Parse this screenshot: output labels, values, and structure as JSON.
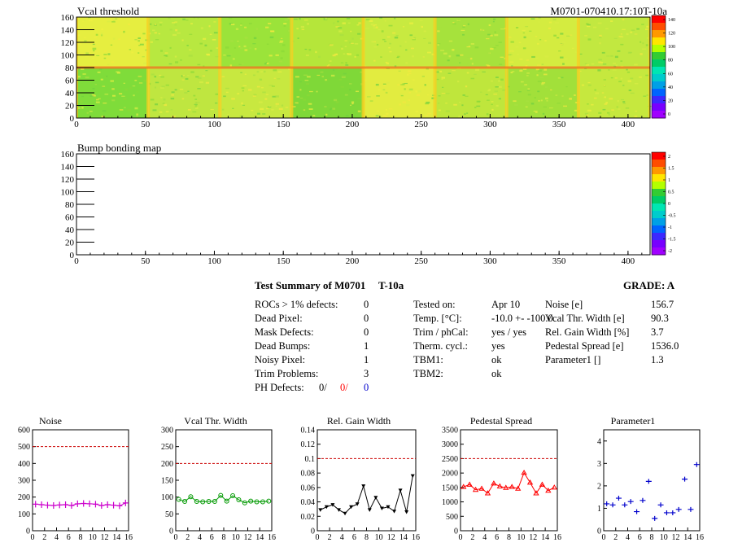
{
  "header": {
    "title_left": "Vcal threshold",
    "title_right": "M0701-070410.17:10T-10a"
  },
  "maps": [
    {
      "title": "Vcal threshold",
      "x_ticks": [
        "0",
        "50",
        "100",
        "150",
        "200",
        "250",
        "300",
        "350",
        "400"
      ],
      "y_ticks": [
        "0",
        "20",
        "40",
        "60",
        "80",
        "100",
        "120",
        "140",
        "160"
      ],
      "palette_labels": [
        "140",
        "120",
        "100",
        "80",
        "60",
        "40",
        "20",
        "0"
      ]
    },
    {
      "title": "Bump bonding map",
      "x_ticks": [
        "0",
        "50",
        "100",
        "150",
        "200",
        "250",
        "300",
        "350",
        "400"
      ],
      "y_ticks": [
        "0",
        "20",
        "40",
        "60",
        "80",
        "100",
        "120",
        "140",
        "160"
      ],
      "palette_labels": [
        "2",
        "1.5",
        "1",
        "0.5",
        "0",
        "-0.5",
        "-1",
        "-1.5",
        "-2"
      ]
    }
  ],
  "summary": {
    "title": "Test Summary of M0701",
    "test_id": "T-10a",
    "grade": "GRADE:  A",
    "defects": [
      {
        "label": "ROCs > 1% defects:",
        "value": "0"
      },
      {
        "label": "Dead Pixel:",
        "value": "0"
      },
      {
        "label": "Mask Defects:",
        "value": "0"
      },
      {
        "label": "Dead Bumps:",
        "value": "1"
      },
      {
        "label": "Noisy Pixel:",
        "value": "1"
      },
      {
        "label": "Trim Problems:",
        "value": "3"
      }
    ],
    "ph_defects": {
      "label": "PH Defects:",
      "v1": "0/",
      "v2": "0/",
      "v3": "0"
    },
    "conditions": [
      {
        "label": "Tested on:",
        "value": "Apr 10"
      },
      {
        "label": "Temp. [°C]:",
        "value": "-10.0 +- -100.0"
      },
      {
        "label": "Trim / phCal:",
        "value": "yes / yes"
      },
      {
        "label": "Therm. cycl.:",
        "value": "yes"
      },
      {
        "label": "TBM1:",
        "value": "ok"
      },
      {
        "label": "TBM2:",
        "value": "ok"
      }
    ],
    "results": [
      {
        "label": "Noise [e]",
        "value": "156.7"
      },
      {
        "label": "Vcal Thr. Width [e]",
        "value": "90.3"
      },
      {
        "label": "Rel. Gain Width [%]",
        "value": "3.7"
      },
      {
        "label": "Pedestal Spread [e]",
        "value": "1536.0"
      },
      {
        "label": "Parameter1 []",
        "value": "1.3"
      }
    ],
    "colors": {
      "red": "#ff0000",
      "blue": "#0000cc"
    }
  },
  "chart_data": [
    {
      "type": "line",
      "title": "Noise",
      "x": [
        0,
        1,
        2,
        3,
        4,
        5,
        6,
        7,
        8,
        9,
        10,
        11,
        12,
        13,
        14,
        15
      ],
      "values": [
        158,
        155,
        152,
        150,
        153,
        155,
        150,
        160,
        162,
        160,
        158,
        150,
        155,
        152,
        148,
        165
      ],
      "xlim": [
        0,
        16
      ],
      "ylim": [
        0,
        600
      ],
      "y_ticks": [
        "0",
        "100",
        "200",
        "300",
        "400",
        "500",
        "600"
      ],
      "x_ticks": [
        "0",
        "2",
        "4",
        "6",
        "8",
        "10",
        "12",
        "14",
        "16"
      ],
      "threshold": 500,
      "marker": "cross",
      "color": "#cc00cc",
      "connect": true
    },
    {
      "type": "line",
      "title": "Vcal Thr. Width",
      "x": [
        0,
        1,
        2,
        3,
        4,
        5,
        6,
        7,
        8,
        9,
        10,
        11,
        12,
        13,
        14,
        15
      ],
      "values": [
        93,
        87,
        101,
        87,
        86,
        87,
        87,
        105,
        88,
        104,
        92,
        83,
        88,
        86,
        86,
        88
      ],
      "xlim": [
        0,
        16
      ],
      "ylim": [
        0,
        300
      ],
      "y_ticks": [
        "0",
        "50",
        "100",
        "150",
        "200",
        "250",
        "300"
      ],
      "x_ticks": [
        "0",
        "2",
        "4",
        "6",
        "8",
        "10",
        "12",
        "14",
        "16"
      ],
      "threshold": 200,
      "marker": "circle",
      "color": "#009900",
      "connect": true
    },
    {
      "type": "line",
      "title": "Rel. Gain Width",
      "x": [
        0,
        1,
        2,
        3,
        4,
        5,
        6,
        7,
        8,
        9,
        10,
        11,
        12,
        13,
        14,
        15
      ],
      "values": [
        0.029,
        0.033,
        0.036,
        0.029,
        0.024,
        0.033,
        0.037,
        0.062,
        0.029,
        0.046,
        0.031,
        0.033,
        0.027,
        0.056,
        0.026,
        0.076
      ],
      "xlim": [
        0,
        16
      ],
      "ylim": [
        0,
        0.14
      ],
      "y_ticks": [
        "0",
        "0.02",
        "0.04",
        "0.06",
        "0.08",
        "0.1",
        "0.12",
        "0.14"
      ],
      "x_ticks": [
        "0",
        "2",
        "4",
        "6",
        "8",
        "10",
        "12",
        "14",
        "16"
      ],
      "threshold": 0.1,
      "marker": "triangle-down",
      "color": "#000000",
      "connect": true
    },
    {
      "type": "line",
      "title": "Pedestal Spread",
      "x": [
        0,
        1,
        2,
        3,
        4,
        5,
        6,
        7,
        8,
        9,
        10,
        11,
        12,
        13,
        14,
        15
      ],
      "values": [
        1520,
        1600,
        1420,
        1460,
        1300,
        1640,
        1540,
        1490,
        1520,
        1460,
        2010,
        1670,
        1300,
        1600,
        1390,
        1500
      ],
      "xlim": [
        0,
        16
      ],
      "ylim": [
        0,
        3500
      ],
      "y_ticks": [
        "0",
        "500",
        "1000",
        "1500",
        "2000",
        "2500",
        "3000",
        "3500"
      ],
      "x_ticks": [
        "0",
        "2",
        "4",
        "6",
        "8",
        "10",
        "12",
        "14",
        "16"
      ],
      "threshold": 2500,
      "marker": "triangle-up",
      "color": "#ff0000",
      "connect": true
    },
    {
      "type": "scatter",
      "title": "Parameter1",
      "x": [
        0,
        1,
        2,
        3,
        4,
        5,
        6,
        7,
        8,
        9,
        10,
        11,
        12,
        13,
        14,
        15
      ],
      "values": [
        1.2,
        1.15,
        1.45,
        1.15,
        1.3,
        0.85,
        1.35,
        2.2,
        0.55,
        1.15,
        0.8,
        0.8,
        0.95,
        2.3,
        0.95,
        2.95
      ],
      "xlim": [
        0,
        16
      ],
      "ylim": [
        0,
        4.5
      ],
      "y_ticks": [
        "0",
        "1",
        "2",
        "3",
        "4"
      ],
      "x_ticks": [
        "0",
        "2",
        "4",
        "6",
        "8",
        "10",
        "12",
        "14",
        "16"
      ],
      "threshold": null,
      "marker": "hbar",
      "color": "#0000cc",
      "connect": false
    }
  ]
}
